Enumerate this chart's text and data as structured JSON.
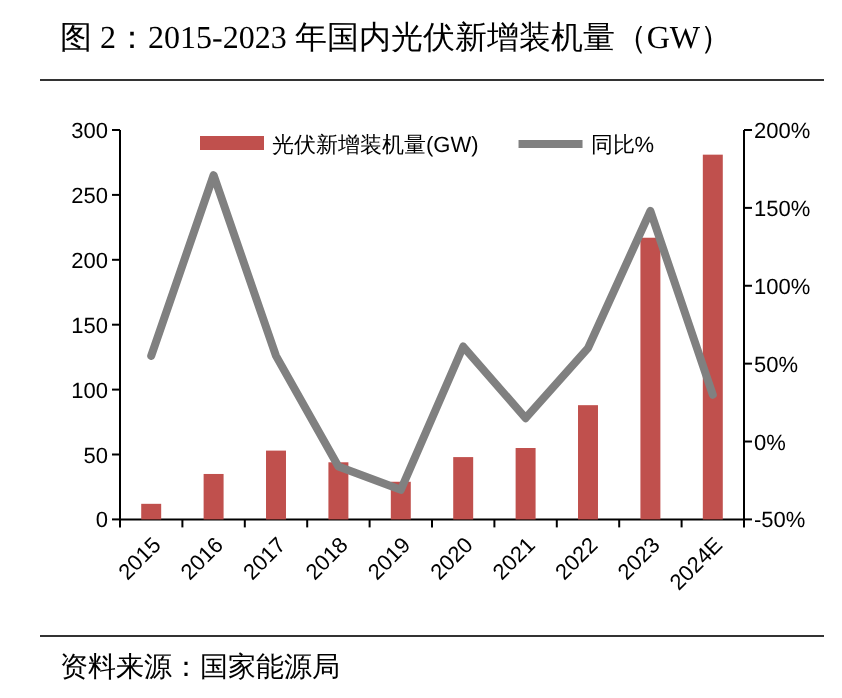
{
  "chart_data": {
    "type": "bar",
    "title": "图 2：2015-2023 年国内光伏新增装机量（GW）",
    "categories": [
      "2015",
      "2016",
      "2017",
      "2018",
      "2019",
      "2020",
      "2021",
      "2022",
      "2023",
      "2024E"
    ],
    "series": [
      {
        "name": "光伏新增装机量(GW)",
        "color": "#c0504d",
        "values": [
          12,
          35,
          53,
          44,
          29,
          48,
          55,
          88,
          217,
          281
        ]
      },
      {
        "name": "同比%",
        "type": "line",
        "axis": "y2",
        "color": "#808080",
        "values": [
          55,
          171,
          55,
          -16,
          -31,
          61,
          15,
          60,
          148,
          30
        ]
      }
    ],
    "ylim": [
      0,
      300
    ],
    "yticks": [
      0,
      50,
      100,
      150,
      200,
      250,
      300
    ],
    "y2lim": [
      -50,
      200
    ],
    "y2ticks": [
      {
        "value": -50,
        "label": "-50%"
      },
      {
        "value": 0,
        "label": "0%"
      },
      {
        "value": 50,
        "label": "50%"
      },
      {
        "value": 100,
        "label": "100%"
      },
      {
        "value": 150,
        "label": "150%"
      },
      {
        "value": 200,
        "label": "200%"
      }
    ],
    "legend": "top",
    "grid": false,
    "annotations": [
      "资料来源：国家能源局"
    ]
  }
}
